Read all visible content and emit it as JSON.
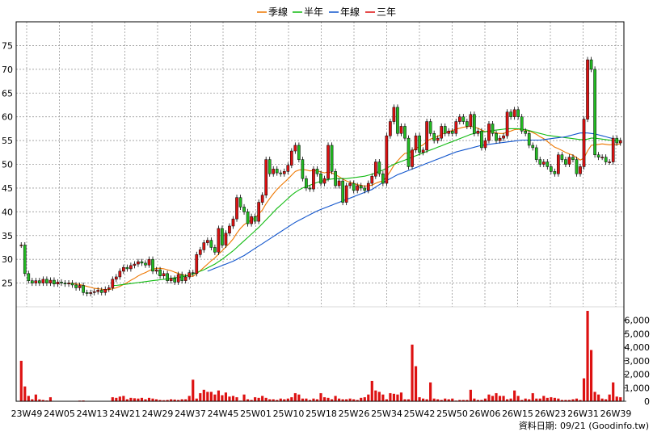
{
  "legend": [
    {
      "label": "季線",
      "color": "#ee7700"
    },
    {
      "label": "半年",
      "color": "#11bb11"
    },
    {
      "label": "年線",
      "color": "#1155cc"
    },
    {
      "label": "三年",
      "color": "#dd1111"
    }
  ],
  "source_note": "資料日期: 09/21  (Goodinfo.tw)",
  "chart_data": {
    "type": "candlestick",
    "price_axis": {
      "ticks": [
        25,
        30,
        35,
        40,
        45,
        50,
        55,
        60,
        65,
        70,
        75
      ],
      "range": [
        20,
        80
      ],
      "side": "left"
    },
    "volume_axis": {
      "ticks": [
        "0",
        "1,000",
        "2,000",
        "3,000",
        "4,000",
        "5,000",
        "6,000"
      ],
      "range": [
        0,
        7000
      ],
      "side": "right"
    },
    "x_tick_labels": [
      "23W49",
      "24W05",
      "24W13",
      "24W21",
      "24W29",
      "24W37",
      "24W45",
      "25W01",
      "25W10",
      "25W18",
      "25W26",
      "25W34",
      "25W42",
      "25W50",
      "26W06",
      "26W15",
      "26W23",
      "26W31",
      "26W39"
    ],
    "grid": true,
    "candle_up_color": "#dd1111",
    "candle_down_color": "#22bb22",
    "series_names": [
      "季線",
      "半年",
      "年線",
      "三年"
    ],
    "close": [
      33.0,
      27.0,
      25.5,
      25.0,
      25.5,
      25.0,
      25.8,
      25.0,
      25.6,
      24.8,
      25.2,
      25.0,
      24.8,
      25.0,
      24.6,
      24.0,
      24.5,
      23.0,
      22.8,
      23.0,
      23.2,
      23.5,
      23.0,
      23.7,
      24.0,
      25.8,
      26.3,
      27.5,
      28.3,
      28.0,
      28.7,
      29.0,
      29.5,
      29.2,
      28.8,
      30.0,
      27.5,
      27.8,
      26.5,
      27.0,
      25.5,
      26.0,
      25.2,
      26.8,
      25.5,
      26.3,
      27.2,
      27.0,
      31.0,
      32.0,
      33.5,
      34.0,
      32.5,
      31.5,
      36.5,
      33.0,
      35.5,
      37.0,
      38.5,
      43.0,
      41.0,
      40.0,
      37.5,
      39.0,
      38.0,
      42.0,
      43.5,
      51.0,
      48.0,
      49.0,
      48.2,
      48.0,
      48.5,
      49.8,
      52.8,
      54.0,
      51.0,
      47.0,
      45.0,
      44.8,
      49.0,
      48.0,
      46.0,
      47.0,
      54.0,
      48.5,
      45.5,
      46.5,
      42.0,
      45.5,
      46.0,
      44.5,
      45.5,
      45.0,
      44.5,
      46.0,
      47.5,
      50.5,
      48.0,
      46.0,
      56.0,
      59.0,
      62.0,
      56.5,
      58.0,
      55.5,
      49.5,
      53.0,
      56.0,
      52.5,
      53.0,
      59.0,
      56.5,
      55.0,
      55.5,
      58.0,
      56.5,
      57.0,
      56.5,
      59.0,
      60.0,
      59.0,
      58.0,
      60.5,
      56.5,
      57.0,
      53.5,
      55.0,
      58.5,
      56.5,
      55.0,
      55.5,
      56.0,
      61.0,
      60.0,
      61.5,
      60.0,
      57.0,
      56.5,
      54.0,
      53.5,
      51.0,
      50.0,
      50.5,
      49.5,
      48.5,
      48.0,
      52.0,
      51.0,
      50.0,
      51.5,
      51.0,
      48.0,
      49.5,
      59.5,
      72.0,
      70.0,
      52.0,
      51.5,
      51.5,
      50.5,
      50.5,
      55.5,
      54.5,
      55.0
    ],
    "volume": [
      3000,
      1100,
      400,
      150,
      500,
      140,
      100,
      60,
      300,
      20,
      15,
      10,
      10,
      10,
      20,
      10,
      50,
      60,
      15,
      10,
      15,
      20,
      30,
      20,
      10,
      300,
      250,
      350,
      400,
      150,
      250,
      220,
      200,
      250,
      150,
      250,
      200,
      150,
      100,
      80,
      100,
      150,
      130,
      100,
      150,
      150,
      400,
      1600,
      200,
      600,
      850,
      700,
      700,
      500,
      800,
      450,
      650,
      350,
      400,
      300,
      50,
      500,
      150,
      100,
      300,
      250,
      400,
      250,
      150,
      150,
      100,
      200,
      150,
      200,
      300,
      600,
      500,
      200,
      200,
      100,
      200,
      150,
      600,
      300,
      250,
      150,
      400,
      200,
      150,
      150,
      200,
      150,
      100,
      250,
      300,
      500,
      1500,
      800,
      700,
      500,
      150,
      600,
      550,
      500,
      650,
      150,
      150,
      4200,
      2600,
      300,
      200,
      150,
      1400,
      200,
      150,
      100,
      200,
      150,
      200,
      50,
      100,
      100,
      100,
      850,
      200,
      100,
      100,
      200,
      500,
      400,
      600,
      400,
      400,
      150,
      200,
      800,
      400,
      100,
      200,
      150,
      600,
      200,
      200,
      400,
      250,
      300,
      250,
      200,
      100,
      100,
      100,
      150,
      200,
      100,
      1700,
      6700,
      3800,
      700,
      500,
      200,
      150,
      500,
      1400,
      350,
      300
    ],
    "ma_quarter": [
      null,
      null,
      null,
      null,
      null,
      null,
      null,
      null,
      null,
      null,
      null,
      null,
      null,
      25.0,
      24.9,
      24.8,
      24.7,
      24.5,
      24.3,
      24.1,
      23.9,
      23.8,
      23.7,
      23.6,
      23.6,
      23.8,
      24.0,
      24.3,
      24.7,
      25.1,
      25.6,
      26.0,
      26.5,
      26.9,
      27.2,
      27.6,
      27.9,
      28.1,
      28.1,
      28.0,
      27.8,
      27.6,
      27.3,
      27.0,
      26.8,
      26.6,
      26.5,
      26.4,
      27.0,
      27.6,
      28.3,
      29.0,
      29.7,
      30.3,
      31.1,
      31.8,
      32.6,
      33.4,
      34.3,
      35.5,
      36.5,
      37.3,
      37.8,
      38.3,
      38.7,
      39.5,
      40.4,
      41.7,
      42.8,
      43.8,
      44.7,
      45.5,
      46.2,
      46.9,
      47.7,
      48.5,
      48.8,
      48.9,
      48.8,
      48.6,
      48.7,
      48.6,
      48.4,
      48.2,
      48.4,
      48.2,
      47.8,
      47.4,
      46.9,
      46.5,
      46.2,
      46.0,
      45.7,
      45.6,
      45.4,
      45.5,
      45.6,
      46.0,
      46.3,
      46.5,
      47.4,
      48.5,
      49.8,
      50.7,
      51.6,
      52.3,
      52.4,
      52.8,
      53.4,
      53.7,
      54.1,
      54.8,
      55.3,
      55.6,
      55.9,
      56.3,
      56.6,
      56.9,
      57.1,
      57.4,
      57.6,
      57.8,
      57.9,
      58.0,
      57.8,
      57.6,
      57.2,
      56.9,
      56.9,
      56.8,
      56.6,
      56.5,
      56.5,
      56.8,
      57.0,
      57.3,
      57.4,
      57.3,
      57.2,
      57.0,
      56.7,
      56.3,
      55.8,
      55.4,
      54.8,
      54.2,
      53.6,
      53.3,
      52.9,
      52.5,
      52.2,
      51.9,
      51.4,
      50.9,
      51.3,
      52.8,
      54.0,
      54.1,
      54.2,
      54.3,
      54.2,
      54.1,
      54.2,
      54.2,
      54.3
    ],
    "ma_half": [
      null,
      null,
      null,
      null,
      null,
      null,
      null,
      null,
      null,
      null,
      null,
      null,
      null,
      null,
      null,
      null,
      null,
      null,
      null,
      null,
      null,
      null,
      null,
      null,
      null,
      24.5,
      24.5,
      24.6,
      24.7,
      24.8,
      24.9,
      25.0,
      25.1,
      25.2,
      25.3,
      25.4,
      25.5,
      25.6,
      25.7,
      25.8,
      25.9,
      26.0,
      26.1,
      26.2,
      26.3,
      26.5,
      26.7,
      26.9,
      27.2,
      27.5,
      27.8,
      28.2,
      28.6,
      29.0,
      29.5,
      30.0,
      30.6,
      31.2,
      31.8,
      32.5,
      33.2,
      33.9,
      34.6,
      35.3,
      36.0,
      36.7,
      37.5,
      38.3,
      39.1,
      39.9,
      40.7,
      41.4,
      42.1,
      42.8,
      43.5,
      44.1,
      44.6,
      45.0,
      45.3,
      45.6,
      45.9,
      46.2,
      46.4,
      46.6,
      46.8,
      46.9,
      47.0,
      47.0,
      47.0,
      47.0,
      47.1,
      47.2,
      47.3,
      47.4,
      47.5,
      47.7,
      47.9,
      48.2,
      48.5,
      48.8,
      49.2,
      49.6,
      50.0,
      50.3,
      50.6,
      50.9,
      51.2,
      51.5,
      51.8,
      52.1,
      52.4,
      52.7,
      53.0,
      53.3,
      53.6,
      53.9,
      54.2,
      54.5,
      54.8,
      55.1,
      55.4,
      55.7,
      56.0,
      56.3,
      56.5,
      56.7,
      56.8,
      56.9,
      57.0,
      57.1,
      57.2,
      57.3,
      57.4,
      57.5,
      57.5,
      57.5,
      57.5,
      57.4,
      57.3,
      57.1,
      56.9,
      56.7,
      56.5,
      56.3,
      56.1,
      56.0,
      55.9,
      55.8,
      55.7,
      55.6,
      55.5,
      55.4,
      55.3,
      55.2,
      55.2,
      55.3,
      55.5,
      55.5,
      55.4,
      55.3,
      55.2,
      55.1,
      55.0,
      55.0,
      55.0
    ],
    "ma_year": [
      null,
      null,
      null,
      null,
      null,
      null,
      null,
      null,
      null,
      null,
      null,
      null,
      null,
      null,
      null,
      null,
      null,
      null,
      null,
      null,
      null,
      null,
      null,
      null,
      null,
      null,
      null,
      null,
      null,
      null,
      null,
      null,
      null,
      null,
      null,
      null,
      null,
      null,
      null,
      null,
      null,
      null,
      null,
      null,
      null,
      null,
      null,
      null,
      null,
      null,
      null,
      27.5,
      27.8,
      28.1,
      28.4,
      28.7,
      29.0,
      29.3,
      29.6,
      30.0,
      30.4,
      30.8,
      31.3,
      31.8,
      32.3,
      32.8,
      33.3,
      33.8,
      34.3,
      34.8,
      35.3,
      35.8,
      36.3,
      36.8,
      37.3,
      37.8,
      38.2,
      38.6,
      39.0,
      39.4,
      39.8,
      40.2,
      40.5,
      40.8,
      41.1,
      41.4,
      41.7,
      42.0,
      42.3,
      42.6,
      42.9,
      43.2,
      43.5,
      43.8,
      44.1,
      44.4,
      44.7,
      45.2,
      45.7,
      46.2,
      46.6,
      47.0,
      47.4,
      47.8,
      48.1,
      48.4,
      48.7,
      49.0,
      49.3,
      49.6,
      49.9,
      50.2,
      50.5,
      50.8,
      51.1,
      51.4,
      51.7,
      52.0,
      52.3,
      52.6,
      52.8,
      53.0,
      53.2,
      53.4,
      53.6,
      53.8,
      54.0,
      54.1,
      54.2,
      54.3,
      54.4,
      54.5,
      54.6,
      54.7,
      54.8,
      54.9,
      55.0,
      55.1,
      55.1,
      55.1,
      55.1,
      55.1,
      55.1,
      55.2,
      55.3,
      55.4,
      55.5,
      55.6,
      55.7,
      55.8,
      56.0,
      56.2,
      56.4,
      56.6,
      56.6,
      56.6,
      56.5,
      56.4,
      56.2,
      56.0,
      55.8,
      55.6,
      55.4
    ]
  }
}
